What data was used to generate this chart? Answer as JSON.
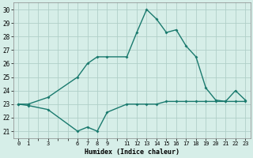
{
  "xlabel": "Humidex (Indice chaleur)",
  "bg_color": "#d6eee8",
  "grid_color": "#b0cfc8",
  "line_color": "#1a7a6e",
  "x_upper": [
    0,
    1,
    3,
    6,
    7,
    8,
    9,
    11,
    12,
    13,
    14,
    15,
    16,
    17,
    18,
    19,
    20,
    21,
    22,
    23
  ],
  "y_upper": [
    23.0,
    23.0,
    23.5,
    25.0,
    26.0,
    26.5,
    26.5,
    26.5,
    28.3,
    30.0,
    29.3,
    28.3,
    28.5,
    27.3,
    26.5,
    24.2,
    23.3,
    23.2,
    24.0,
    23.3
  ],
  "x_lower": [
    0,
    1,
    3,
    6,
    7,
    8,
    9,
    11,
    12,
    13,
    14,
    15,
    16,
    17,
    18,
    19,
    20,
    21,
    22,
    23
  ],
  "y_lower": [
    23.0,
    22.9,
    22.6,
    21.0,
    21.3,
    21.0,
    22.4,
    23.0,
    23.0,
    23.0,
    23.0,
    23.2,
    23.2,
    23.2,
    23.2,
    23.2,
    23.2,
    23.2,
    23.2,
    23.2
  ],
  "xtick_positions": [
    0,
    1,
    2,
    3,
    4,
    5,
    6,
    7,
    8,
    9,
    10,
    11,
    12,
    13,
    14,
    15,
    16,
    17,
    18,
    19,
    20,
    21,
    22,
    23
  ],
  "xtick_labels": [
    "0",
    "1",
    "",
    "3",
    "",
    "",
    "6",
    "7",
    "8",
    "9",
    "",
    "11",
    "12",
    "13",
    "14",
    "15",
    "16",
    "17",
    "18",
    "19",
    "20",
    "21",
    "22",
    "23"
  ],
  "yticks": [
    21,
    22,
    23,
    24,
    25,
    26,
    27,
    28,
    29,
    30
  ],
  "ylim": [
    20.5,
    30.5
  ],
  "xlim": [
    -0.5,
    23.5
  ],
  "marker_size": 2.0,
  "line_width": 1.0
}
